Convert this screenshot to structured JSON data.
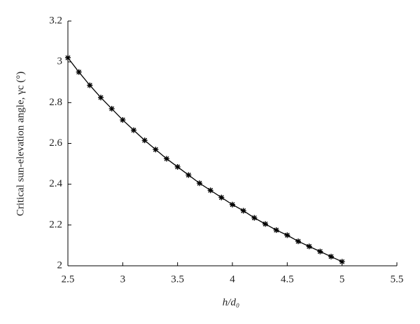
{
  "chart_data": {
    "type": "line",
    "x_label": "h/d₀",
    "y_label": "Critical sun-elevation angle, γc (°)",
    "x": [
      2.5,
      2.6,
      2.7,
      2.8,
      2.9,
      3.0,
      3.1,
      3.2,
      3.3,
      3.4,
      3.5,
      3.6,
      3.7,
      3.8,
      3.9,
      4.0,
      4.1,
      4.2,
      4.3,
      4.4,
      4.5,
      4.6,
      4.7,
      4.8,
      4.9,
      5.0
    ],
    "values": [
      3.02,
      2.95,
      2.885,
      2.825,
      2.77,
      2.715,
      2.665,
      2.615,
      2.57,
      2.525,
      2.485,
      2.445,
      2.405,
      2.37,
      2.335,
      2.3,
      2.27,
      2.235,
      2.205,
      2.175,
      2.15,
      2.12,
      2.095,
      2.07,
      2.045,
      2.02
    ],
    "color": "#000000",
    "xlim": [
      2.5,
      5.5
    ],
    "xticks": [
      2.5,
      3,
      3.5,
      4,
      4.5,
      5,
      5.5
    ],
    "ylim": [
      2,
      3.2
    ],
    "yticks": [
      2,
      2.2,
      2.4,
      2.6,
      2.8,
      3,
      3.2
    ]
  }
}
